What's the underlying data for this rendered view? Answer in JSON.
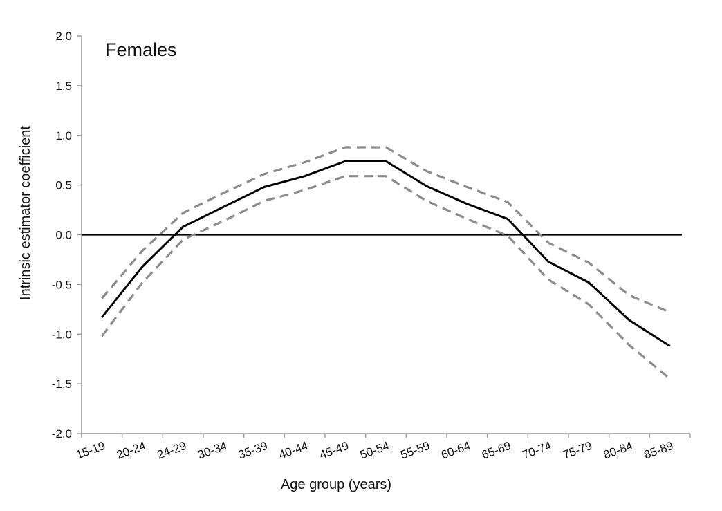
{
  "chart_data": {
    "type": "line",
    "title": "Females",
    "xlabel": "Age group (years)",
    "ylabel": "Intrinsic estimator coefficient",
    "categories": [
      "15-19",
      "20-24",
      "24-29",
      "30-34",
      "35-39",
      "40-44",
      "45-49",
      "50-54",
      "55-59",
      "60-64",
      "65-69",
      "70-74",
      "75-79",
      "80-84",
      "85-89"
    ],
    "ylim": [
      -2.0,
      2.0
    ],
    "yticks": [
      "2.0",
      "1.5",
      "1.0",
      "0.5",
      "0.0",
      "-0.5",
      "-1.0",
      "-1.5",
      "-2.0"
    ],
    "reference_line": 0.0,
    "grid": false,
    "legend": "none",
    "series": [
      {
        "style": "solid",
        "color": "#000000",
        "values": [
          -0.83,
          -0.32,
          0.08,
          0.28,
          0.48,
          0.59,
          0.74,
          0.74,
          0.49,
          0.31,
          0.16,
          -0.27,
          -0.48,
          -0.86,
          -1.12
        ]
      },
      {
        "style": "dashed",
        "color": "#8c8c8c",
        "values": [
          -0.64,
          -0.16,
          0.22,
          0.42,
          0.61,
          0.73,
          0.88,
          0.88,
          0.64,
          0.48,
          0.33,
          -0.08,
          -0.28,
          -0.61,
          -0.78
        ]
      },
      {
        "style": "dashed",
        "color": "#8c8c8c",
        "values": [
          -1.02,
          -0.48,
          -0.05,
          0.14,
          0.34,
          0.45,
          0.59,
          0.59,
          0.34,
          0.16,
          -0.01,
          -0.45,
          -0.7,
          -1.11,
          -1.45
        ]
      }
    ]
  }
}
